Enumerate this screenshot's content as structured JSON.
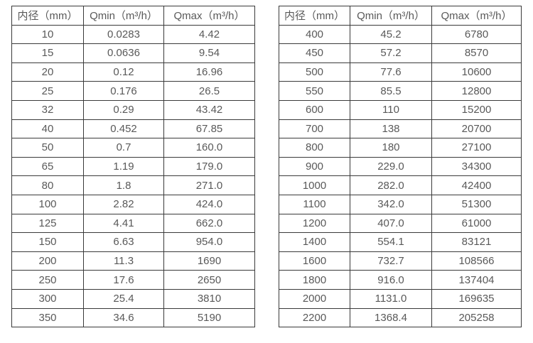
{
  "tables": [
    {
      "id": "small_diameters",
      "headers": [
        "内径（mm）",
        "Qmin（m³/h）",
        "Qmax（m³/h）"
      ],
      "rows": [
        [
          "10",
          "0.0283",
          "4.42"
        ],
        [
          "15",
          "0.0636",
          "9.54"
        ],
        [
          "20",
          "0.12",
          "16.96"
        ],
        [
          "25",
          "0.176",
          "26.5"
        ],
        [
          "32",
          "0.29",
          "43.42"
        ],
        [
          "40",
          "0.452",
          "67.85"
        ],
        [
          "50",
          "0.7",
          "160.0"
        ],
        [
          "65",
          "1.19",
          "179.0"
        ],
        [
          "80",
          "1.8",
          "271.0"
        ],
        [
          "100",
          "2.82",
          "424.0"
        ],
        [
          "125",
          "4.41",
          "662.0"
        ],
        [
          "150",
          "6.63",
          "954.0"
        ],
        [
          "200",
          "11.3",
          "1690"
        ],
        [
          "250",
          "17.6",
          "2650"
        ],
        [
          "300",
          "25.4",
          "3810"
        ],
        [
          "350",
          "34.6",
          "5190"
        ]
      ]
    },
    {
      "id": "large_diameters",
      "headers": [
        "内径（mm）",
        "Qmin（m³/h）",
        "Qmax（m³/h）"
      ],
      "rows": [
        [
          "400",
          "45.2",
          "6780"
        ],
        [
          "450",
          "57.2",
          "8570"
        ],
        [
          "500",
          "77.6",
          "10600"
        ],
        [
          "550",
          "85.5",
          "12800"
        ],
        [
          "600",
          "110",
          "15200"
        ],
        [
          "700",
          "138",
          "20700"
        ],
        [
          "800",
          "180",
          "27100"
        ],
        [
          "900",
          "229.0",
          "34300"
        ],
        [
          "1000",
          "282.0",
          "42400"
        ],
        [
          "1100",
          "342.0",
          "51300"
        ],
        [
          "1200",
          "407.0",
          "61000"
        ],
        [
          "1400",
          "554.1",
          "83121"
        ],
        [
          "1600",
          "732.7",
          "108566"
        ],
        [
          "1800",
          "916.0",
          "137404"
        ],
        [
          "2000",
          "1131.0",
          "169635"
        ],
        [
          "2200",
          "1368.4",
          "205258"
        ]
      ]
    }
  ],
  "colors": {
    "text": "#595959",
    "border": "#3a3a3a",
    "background": "#ffffff"
  }
}
